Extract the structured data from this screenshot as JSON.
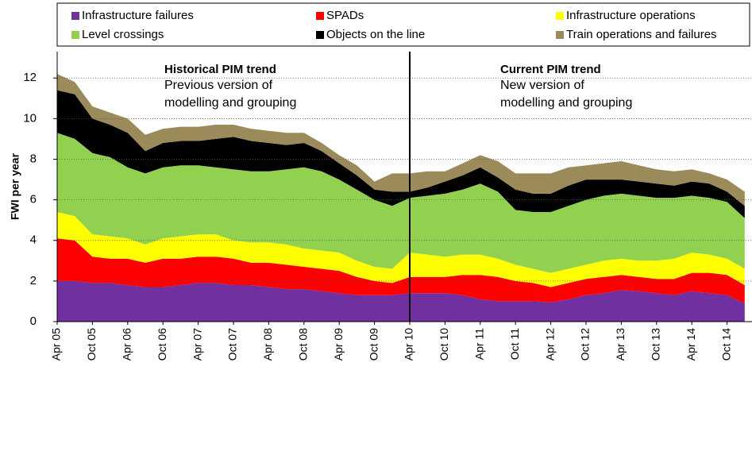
{
  "chart_data": {
    "type": "stacked_area",
    "ylabel": "FWI per year",
    "ylim": [
      0,
      13.3
    ],
    "yticks": [
      0,
      2,
      4,
      6,
      8,
      10,
      12
    ],
    "grid": true,
    "categories": [
      "Apr 05",
      null,
      "Oct 05",
      null,
      "Apr 06",
      null,
      "Oct 06",
      null,
      "Apr 07",
      null,
      "Oct 07",
      null,
      "Apr 08",
      null,
      "Oct 08",
      null,
      "Apr 09",
      null,
      "Oct 09",
      null,
      "Apr 10",
      null,
      "Oct 10",
      null,
      "Apr 11",
      null,
      "Oct 11",
      null,
      "Apr 12",
      null,
      "Oct 12",
      null,
      "Apr 13",
      null,
      "Oct 13",
      null,
      "Apr 14",
      null,
      "Oct 14",
      null
    ],
    "divider": "Apr 10",
    "annotations": [
      {
        "title": "Historical PIM trend",
        "lines": [
          "Previous version of",
          "modelling and grouping"
        ]
      },
      {
        "title": "Current PIM trend",
        "lines": [
          "New version of",
          "modelling and grouping"
        ]
      }
    ],
    "series": [
      {
        "name": "Infrastructure failures",
        "color": "#7030a0",
        "values": [
          2.0,
          2.0,
          1.9,
          1.9,
          1.8,
          1.7,
          1.7,
          1.8,
          1.9,
          1.9,
          1.8,
          1.8,
          1.7,
          1.6,
          1.6,
          1.5,
          1.4,
          1.3,
          1.3,
          1.3,
          1.4,
          1.4,
          1.4,
          1.3,
          1.1,
          1.0,
          1.0,
          1.0,
          0.95,
          1.1,
          1.3,
          1.4,
          1.55,
          1.5,
          1.4,
          1.3,
          1.5,
          1.4,
          1.3,
          0.9
        ]
      },
      {
        "name": "SPADs",
        "color": "#ff0000",
        "values": [
          2.1,
          2.0,
          1.3,
          1.2,
          1.3,
          1.2,
          1.4,
          1.3,
          1.3,
          1.3,
          1.3,
          1.1,
          1.2,
          1.2,
          1.1,
          1.1,
          1.1,
          0.9,
          0.7,
          0.6,
          0.8,
          0.8,
          0.8,
          1.0,
          1.2,
          1.2,
          1.0,
          0.9,
          0.75,
          0.8,
          0.8,
          0.8,
          0.75,
          0.7,
          0.7,
          0.8,
          0.9,
          1.0,
          1.0,
          0.9
        ]
      },
      {
        "name": "Infrastructure operations",
        "color": "#ffff00",
        "values": [
          1.3,
          1.2,
          1.1,
          1.1,
          1.0,
          0.9,
          1.0,
          1.1,
          1.1,
          1.1,
          0.9,
          1.0,
          1.0,
          1.0,
          0.9,
          0.9,
          0.9,
          0.8,
          0.7,
          0.7,
          1.2,
          1.1,
          1.0,
          1.0,
          1.0,
          0.9,
          0.8,
          0.7,
          0.7,
          0.7,
          0.7,
          0.8,
          0.8,
          0.8,
          0.9,
          1.0,
          1.0,
          0.9,
          0.8,
          0.8
        ]
      },
      {
        "name": "Level crossings",
        "color": "#92d050",
        "values": [
          3.9,
          3.8,
          4.0,
          3.9,
          3.5,
          3.5,
          3.5,
          3.5,
          3.4,
          3.3,
          3.5,
          3.5,
          3.5,
          3.7,
          4.0,
          3.9,
          3.6,
          3.5,
          3.3,
          3.1,
          2.7,
          2.9,
          3.1,
          3.2,
          3.5,
          3.3,
          2.7,
          2.8,
          3.0,
          3.1,
          3.2,
          3.2,
          3.2,
          3.2,
          3.1,
          3.0,
          2.8,
          2.8,
          2.8,
          2.5
        ]
      },
      {
        "name": "Objects on the line",
        "color": "#000000",
        "values": [
          2.1,
          2.2,
          1.7,
          1.6,
          1.7,
          1.1,
          1.2,
          1.2,
          1.2,
          1.4,
          1.6,
          1.5,
          1.4,
          1.2,
          1.2,
          1.0,
          0.8,
          0.7,
          0.5,
          0.7,
          0.3,
          0.4,
          0.6,
          0.7,
          0.8,
          0.7,
          1.0,
          0.9,
          0.9,
          1.0,
          1.0,
          0.8,
          0.7,
          0.7,
          0.7,
          0.6,
          0.7,
          0.7,
          0.5,
          0.6
        ]
      },
      {
        "name": "Train operations and failures",
        "color": "#9c8b5a",
        "values": [
          0.8,
          0.6,
          0.6,
          0.6,
          0.7,
          0.8,
          0.7,
          0.7,
          0.7,
          0.7,
          0.6,
          0.6,
          0.6,
          0.6,
          0.5,
          0.4,
          0.4,
          0.5,
          0.4,
          0.9,
          0.9,
          0.8,
          0.5,
          0.6,
          0.6,
          0.8,
          0.8,
          1.0,
          1.0,
          0.9,
          0.7,
          0.8,
          0.9,
          0.8,
          0.7,
          0.7,
          0.6,
          0.5,
          0.6,
          0.7
        ]
      }
    ]
  }
}
